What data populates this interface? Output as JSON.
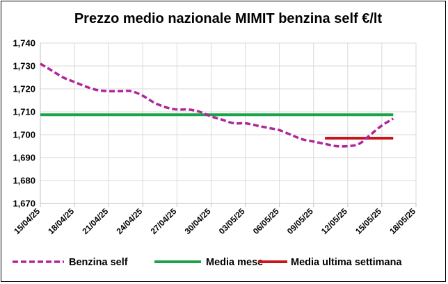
{
  "chart_data": {
    "type": "line",
    "title": "Prezzo medio nazionale MIMIT benzina self €/lt",
    "xlabel": "",
    "ylabel": "",
    "ylim": [
      1.67,
      1.74
    ],
    "yticks": [
      1.74,
      1.73,
      1.72,
      1.71,
      1.7,
      1.69,
      1.68,
      1.67
    ],
    "ytick_labels": [
      "1,740",
      "1,730",
      "1,720",
      "1,710",
      "1,700",
      "1,690",
      "1,680",
      "1,670"
    ],
    "xticks": [
      "2025-04-15",
      "2025-04-18",
      "2025-04-21",
      "2025-04-24",
      "2025-04-27",
      "2025-04-30",
      "2025-05-03",
      "2025-05-06",
      "2025-05-09",
      "2025-05-12",
      "2025-05-15",
      "2025-05-18"
    ],
    "xtick_labels": [
      "15/04/25",
      "18/04/25",
      "21/04/25",
      "24/04/25",
      "27/04/25",
      "30/04/25",
      "03/05/25",
      "06/05/25",
      "09/05/25",
      "12/05/25",
      "15/05/25",
      "18/05/25"
    ],
    "xlim": [
      "2025-04-15",
      "2025-05-18"
    ],
    "grid": true,
    "legend_position": "bottom",
    "series": [
      {
        "name": "Benzina self",
        "style": "dashed",
        "color": "#B0269A",
        "points": [
          {
            "x": "2025-04-15",
            "y": 1.731
          },
          {
            "x": "2025-04-16",
            "y": 1.728
          },
          {
            "x": "2025-04-17",
            "y": 1.725
          },
          {
            "x": "2025-04-18",
            "y": 1.723
          },
          {
            "x": "2025-04-19",
            "y": 1.721
          },
          {
            "x": "2025-04-20",
            "y": 1.7195
          },
          {
            "x": "2025-04-21",
            "y": 1.719
          },
          {
            "x": "2025-04-22",
            "y": 1.719
          },
          {
            "x": "2025-04-23",
            "y": 1.719
          },
          {
            "x": "2025-04-24",
            "y": 1.717
          },
          {
            "x": "2025-04-25",
            "y": 1.714
          },
          {
            "x": "2025-04-26",
            "y": 1.712
          },
          {
            "x": "2025-04-27",
            "y": 1.711
          },
          {
            "x": "2025-04-28",
            "y": 1.711
          },
          {
            "x": "2025-04-29",
            "y": 1.71
          },
          {
            "x": "2025-04-30",
            "y": 1.708
          },
          {
            "x": "2025-05-01",
            "y": 1.7065
          },
          {
            "x": "2025-05-02",
            "y": 1.705
          },
          {
            "x": "2025-05-03",
            "y": 1.705
          },
          {
            "x": "2025-05-04",
            "y": 1.704
          },
          {
            "x": "2025-05-05",
            "y": 1.703
          },
          {
            "x": "2025-05-06",
            "y": 1.702
          },
          {
            "x": "2025-05-07",
            "y": 1.7
          },
          {
            "x": "2025-05-08",
            "y": 1.698
          },
          {
            "x": "2025-05-09",
            "y": 1.697
          },
          {
            "x": "2025-05-10",
            "y": 1.696
          },
          {
            "x": "2025-05-11",
            "y": 1.695
          },
          {
            "x": "2025-05-12",
            "y": 1.695
          },
          {
            "x": "2025-05-13",
            "y": 1.696
          },
          {
            "x": "2025-05-14",
            "y": 1.7
          },
          {
            "x": "2025-05-15",
            "y": 1.704
          },
          {
            "x": "2025-05-16",
            "y": 1.707
          }
        ]
      },
      {
        "name": "Media mese",
        "style": "solid",
        "color": "#1BA34A",
        "points": [
          {
            "x": "2025-04-15",
            "y": 1.7087
          },
          {
            "x": "2025-05-16",
            "y": 1.7087
          }
        ]
      },
      {
        "name": "Media ultima settimana",
        "style": "solid",
        "color": "#C8171C",
        "points": [
          {
            "x": "2025-05-10",
            "y": 1.6985
          },
          {
            "x": "2025-05-16",
            "y": 1.6985
          }
        ]
      }
    ]
  }
}
